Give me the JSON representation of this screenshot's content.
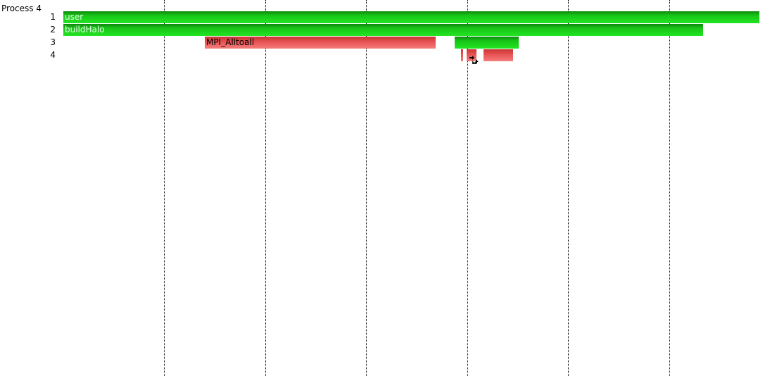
{
  "process_title": "Process 4",
  "rows": [
    "1",
    "2",
    "3",
    "4"
  ],
  "bars": [
    {
      "row": 1,
      "label": "user",
      "kind": "user-code",
      "color": "#1ccc1c"
    },
    {
      "row": 2,
      "label": "buildHalo",
      "kind": "user-code",
      "color": "#1ccc1c"
    },
    {
      "row": 3,
      "label": "MPI_Alltoall",
      "kind": "mpi",
      "color": "#e85454"
    },
    {
      "row": 3,
      "label": "",
      "kind": "user-code",
      "color": "#1ccc1c"
    },
    {
      "row": 4,
      "label": "",
      "kind": "mpi",
      "color": "#e85454"
    },
    {
      "row": 4,
      "label": "",
      "kind": "mpi",
      "color": "#e85454"
    },
    {
      "row": 4,
      "label": "",
      "kind": "mpi",
      "color": "#e85454"
    }
  ],
  "cursor": {
    "icon": "resize-cursor-icon"
  },
  "colors": {
    "user_code": "#1ccc1c",
    "mpi": "#e85454",
    "grid": "#000000"
  }
}
